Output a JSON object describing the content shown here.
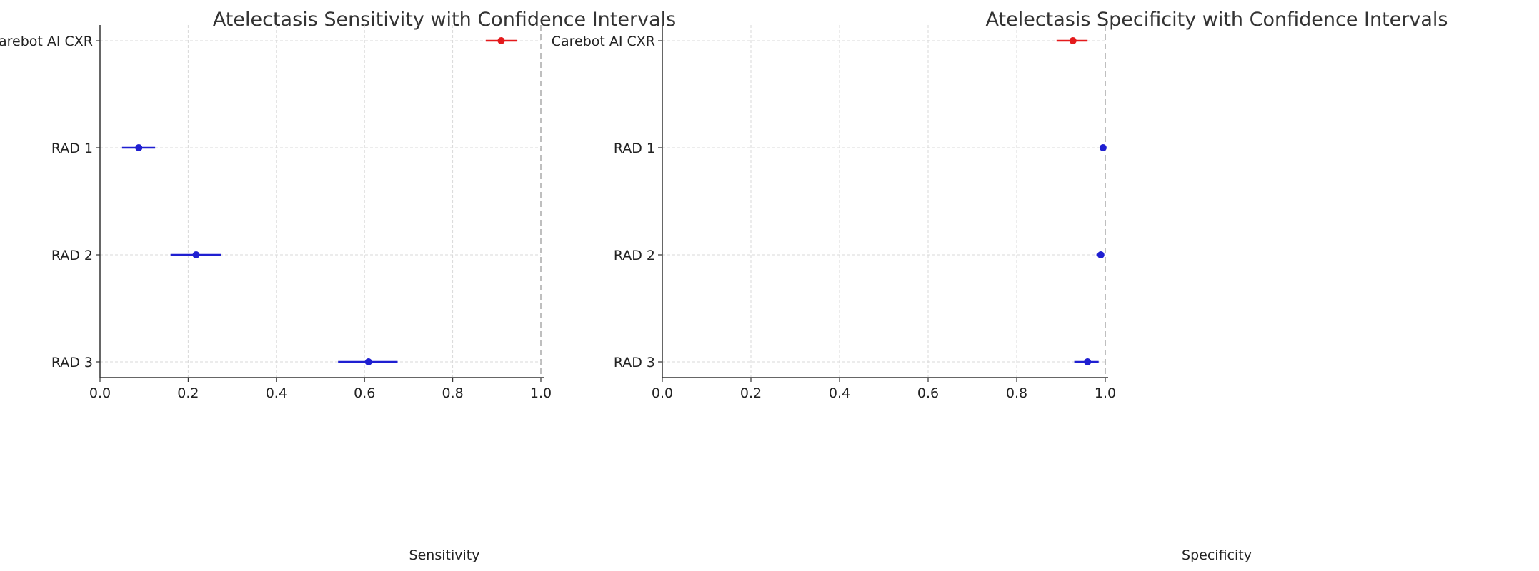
{
  "chart_data": [
    {
      "type": "errorbar",
      "title": "Atelectasis Sensitivity with Confidence Intervals",
      "xlabel": "Sensitivity",
      "ylabel": "",
      "xlim": [
        0.0,
        1.0
      ],
      "xticks": [
        "0.0",
        "0.2",
        "0.4",
        "0.6",
        "0.8",
        "1.0"
      ],
      "grid": true,
      "reference_line_x": 1.0,
      "categories": [
        "Carebot AI CXR",
        "RAD 1",
        "RAD 2",
        "RAD 3"
      ],
      "points": [
        {
          "label": "Carebot AI CXR",
          "value": 0.91,
          "lower": 0.875,
          "upper": 0.945,
          "color": "#e41a1c"
        },
        {
          "label": "RAD 1",
          "value": 0.088,
          "lower": 0.05,
          "upper": 0.125,
          "color": "#1f1fd1"
        },
        {
          "label": "RAD 2",
          "value": 0.218,
          "lower": 0.16,
          "upper": 0.275,
          "color": "#1f1fd1"
        },
        {
          "label": "RAD 3",
          "value": 0.609,
          "lower": 0.54,
          "upper": 0.675,
          "color": "#1f1fd1"
        }
      ]
    },
    {
      "type": "errorbar",
      "title": "Atelectasis Specificity with Confidence Intervals",
      "xlabel": "Specificity",
      "ylabel": "",
      "xlim": [
        0.0,
        1.0
      ],
      "xticks": [
        "0.0",
        "0.2",
        "0.4",
        "0.6",
        "0.8",
        "1.0"
      ],
      "grid": true,
      "reference_line_x": 1.0,
      "categories": [
        "Carebot AI CXR",
        "RAD 1",
        "RAD 2",
        "RAD 3"
      ],
      "points": [
        {
          "label": "Carebot AI CXR",
          "value": 0.927,
          "lower": 0.89,
          "upper": 0.96,
          "color": "#e41a1c"
        },
        {
          "label": "RAD 1",
          "value": 0.995,
          "lower": 0.99,
          "upper": 1.0,
          "color": "#1f1fd1"
        },
        {
          "label": "RAD 2",
          "value": 0.99,
          "lower": 0.98,
          "upper": 0.997,
          "color": "#1f1fd1"
        },
        {
          "label": "RAD 3",
          "value": 0.96,
          "lower": 0.93,
          "upper": 0.985,
          "color": "#1f1fd1"
        }
      ]
    }
  ]
}
